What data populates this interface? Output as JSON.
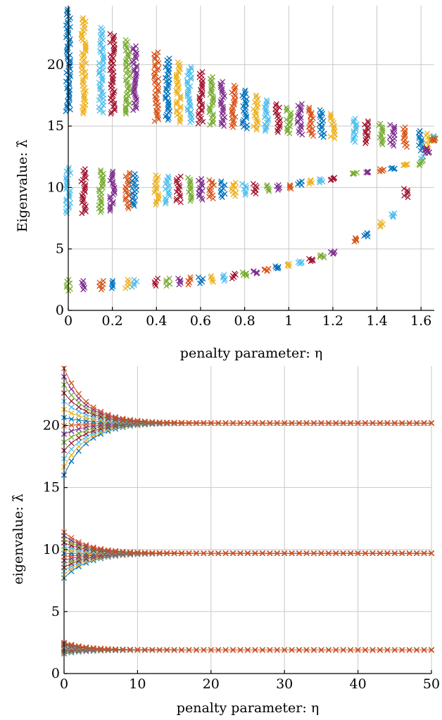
{
  "colors": [
    "#0072BD",
    "#EDB120",
    "#4DBEEE",
    "#A2142F",
    "#77AC30",
    "#7E2F8E",
    "#D95319"
  ],
  "chart_data": [
    {
      "type": "scatter",
      "marker": "x",
      "xlabel": "penalty parameter: η",
      "ylabel": "Eigenvalue: λ̂",
      "xlim": [
        0,
        1.66
      ],
      "ylim": [
        0,
        24.8
      ],
      "xticks": [
        0,
        0.2,
        0.4,
        0.6,
        0.8,
        1,
        1.2,
        1.4,
        1.6
      ],
      "xtick_labels": [
        "0",
        "0.2",
        "0.4",
        "0.6",
        "0.8",
        "1",
        "1.2",
        "1.4",
        "1.6"
      ],
      "yticks": [
        0,
        5,
        10,
        15,
        20
      ],
      "ytick_labels": [
        "0",
        "5",
        "10",
        "15",
        "20"
      ],
      "grid": true,
      "series": [
        {
          "values": [
            [
              0,
              16.2,
              24.5
            ],
            [
              0.07,
              16.0,
              23.8
            ],
            [
              0.15,
              16.1,
              23.0
            ],
            [
              0.2,
              16.0,
              22.5
            ],
            [
              0.27,
              16.0,
              22.0
            ],
            [
              0.3,
              16.3,
              21.5
            ],
            [
              0.4,
              15.4,
              21.0
            ],
            [
              0.45,
              15.5,
              20.5
            ],
            [
              0.5,
              15.3,
              20.2
            ],
            [
              0.55,
              15.3,
              19.8
            ],
            [
              0.6,
              15.2,
              19.4
            ],
            [
              0.65,
              15.1,
              19.0
            ],
            [
              0.7,
              15.0,
              18.6
            ],
            [
              0.75,
              14.9,
              18.3
            ],
            [
              0.8,
              14.8,
              17.9
            ],
            [
              0.85,
              14.7,
              17.5
            ],
            [
              0.9,
              14.6,
              17.1
            ],
            [
              0.95,
              14.5,
              16.8
            ],
            [
              1.0,
              14.4,
              16.5
            ],
            [
              1.05,
              14.3,
              16.8
            ],
            [
              1.1,
              14.2,
              16.5
            ],
            [
              1.15,
              14.1,
              16.3
            ],
            [
              1.2,
              14.0,
              16.0
            ],
            [
              1.3,
              13.7,
              15.6
            ],
            [
              1.35,
              13.6,
              15.4
            ],
            [
              1.42,
              13.5,
              15.2
            ],
            [
              1.47,
              13.4,
              15.1
            ],
            [
              1.53,
              13.3,
              14.9
            ],
            [
              1.6,
              13.0,
              14.6
            ],
            [
              1.63,
              13.5,
              14.4
            ],
            [
              1.66,
              14.0,
              14.2
            ]
          ]
        },
        {
          "values": [
            [
              0,
              7.9,
              11.6
            ],
            [
              0.07,
              7.9,
              11.5
            ],
            [
              0.15,
              8.0,
              11.4
            ],
            [
              0.2,
              8.1,
              11.3
            ],
            [
              0.27,
              8.3,
              11.2
            ],
            [
              0.3,
              8.5,
              11.1
            ],
            [
              0.4,
              8.6,
              11.0
            ],
            [
              0.45,
              8.7,
              10.9
            ],
            [
              0.5,
              8.8,
              10.9
            ],
            [
              0.55,
              8.9,
              10.8
            ],
            [
              0.6,
              9.0,
              10.7
            ],
            [
              0.65,
              9.1,
              10.6
            ],
            [
              0.7,
              9.2,
              10.5
            ],
            [
              0.75,
              9.3,
              10.4
            ],
            [
              0.8,
              9.4,
              10.3
            ],
            [
              0.85,
              9.5,
              10.3
            ],
            [
              0.9,
              9.7,
              10.2
            ],
            [
              0.95,
              9.8,
              10.2
            ],
            [
              1.0,
              9.9,
              10.2
            ],
            [
              1.05,
              10.2,
              10.5
            ],
            [
              1.1,
              10.3,
              10.6
            ],
            [
              1.15,
              10.4,
              10.7
            ],
            [
              1.2,
              10.6,
              10.8
            ],
            [
              1.3,
              11.1,
              11.2
            ],
            [
              1.35,
              11.2,
              11.3
            ],
            [
              1.42,
              11.3,
              11.5
            ],
            [
              1.47,
              11.5,
              11.6
            ],
            [
              1.53,
              11.8,
              11.9
            ],
            [
              1.6,
              12.0,
              12.5
            ],
            [
              1.63,
              12.8,
              13.2
            ],
            [
              1.66,
              13.8,
              14.0
            ]
          ]
        },
        {
          "values": [
            [
              0,
              1.6,
              2.5
            ],
            [
              0.07,
              1.7,
              2.4
            ],
            [
              0.15,
              1.7,
              2.4
            ],
            [
              0.2,
              1.8,
              2.4
            ],
            [
              0.27,
              1.8,
              2.5
            ],
            [
              0.3,
              1.9,
              2.5
            ],
            [
              0.4,
              2.0,
              2.6
            ],
            [
              0.45,
              2.0,
              2.6
            ],
            [
              0.5,
              2.1,
              2.6
            ],
            [
              0.55,
              2.1,
              2.7
            ],
            [
              0.6,
              2.2,
              2.7
            ],
            [
              0.65,
              2.3,
              2.8
            ],
            [
              0.7,
              2.4,
              2.9
            ],
            [
              0.75,
              2.6,
              3.0
            ],
            [
              0.8,
              2.8,
              3.1
            ],
            [
              0.85,
              3.0,
              3.2
            ],
            [
              0.9,
              3.2,
              3.4
            ],
            [
              0.95,
              3.4,
              3.6
            ],
            [
              1.0,
              3.6,
              3.8
            ],
            [
              1.05,
              3.8,
              4.0
            ],
            [
              1.1,
              4.0,
              4.2
            ],
            [
              1.15,
              4.3,
              4.5
            ],
            [
              1.2,
              4.6,
              4.8
            ],
            [
              1.3,
              5.6,
              5.9
            ],
            [
              1.35,
              6.0,
              6.3
            ],
            [
              1.42,
              6.8,
              7.2
            ],
            [
              1.47,
              7.6,
              7.9
            ],
            [
              1.53,
              9.2,
              9.9
            ],
            [
              1.6,
              11.8,
              12.2
            ],
            [
              1.63,
              12.8,
              13.1
            ],
            [
              1.66,
              13.8,
              14.0
            ]
          ]
        }
      ]
    },
    {
      "type": "line",
      "marker": "x",
      "xlabel": "penalty parameter: η",
      "ylabel": "eigenvalue: λ̂",
      "xlim": [
        0,
        50
      ],
      "ylim": [
        0,
        24.8
      ],
      "xticks": [
        0,
        10,
        20,
        30,
        40,
        50
      ],
      "xtick_labels": [
        "0",
        "10",
        "20",
        "30",
        "40",
        "50"
      ],
      "yticks": [
        0,
        5,
        10,
        15,
        20
      ],
      "ytick_labels": [
        "0",
        "5",
        "10",
        "15",
        "20"
      ],
      "grid": true,
      "series": [
        {
          "limit": 20.2,
          "start_low": 16.0,
          "start_high": 24.6
        },
        {
          "limit": 9.7,
          "start_low": 7.7,
          "start_high": 11.4
        },
        {
          "limit": 1.9,
          "start_low": 1.6,
          "start_high": 2.5
        }
      ]
    }
  ]
}
